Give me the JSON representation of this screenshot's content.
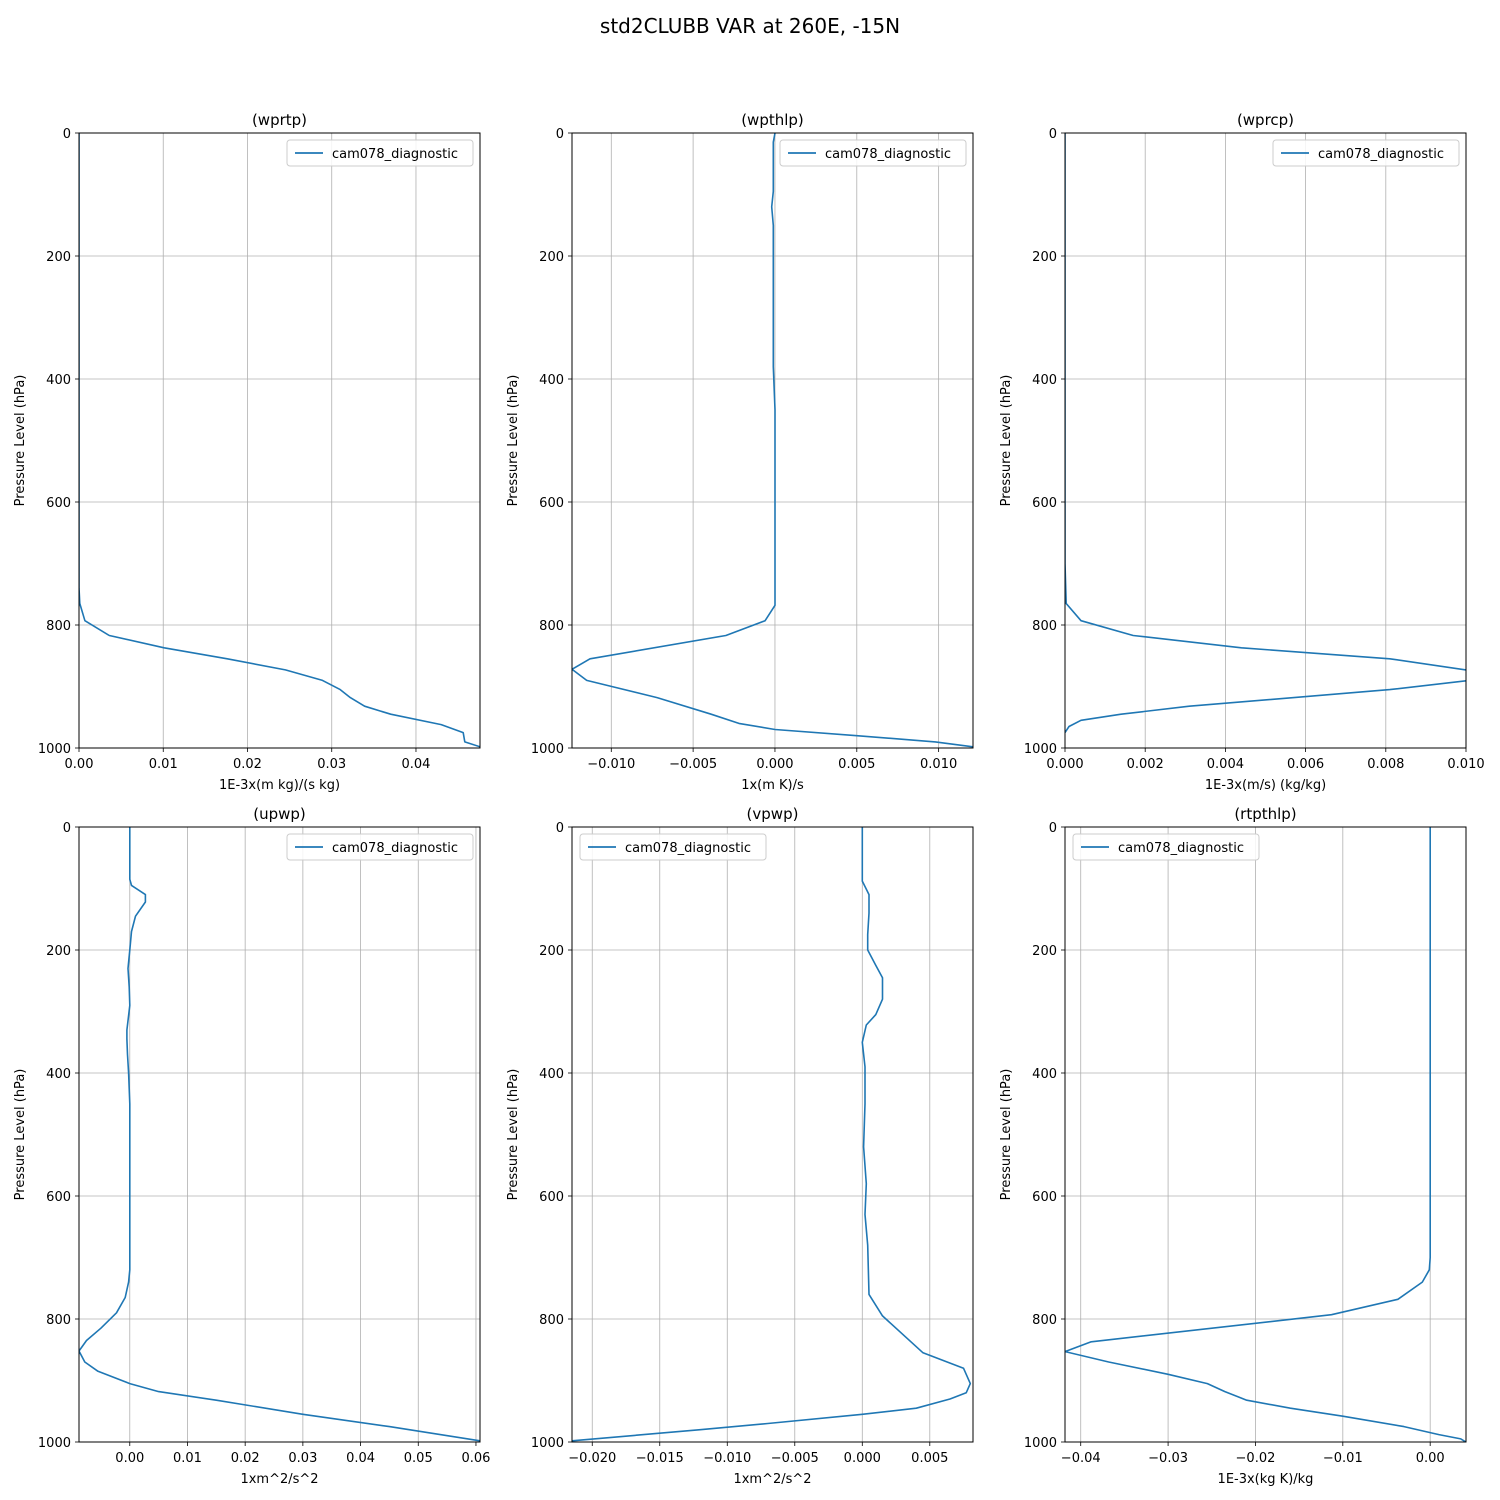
{
  "figure": {
    "title": "std2CLUBB VAR at 260E, -15N"
  },
  "colors": {
    "series": "#1f77b4",
    "grid": "#b0b0b0",
    "axis": "#000000",
    "legend_border": "#cccccc"
  },
  "chart_data": [
    {
      "type": "line",
      "title": "(wprtp)",
      "xlabel": "1E-3x(m kg)/(s kg)",
      "ylabel": "Pressure Level (hPa)",
      "xlim": [
        0,
        0.0476
      ],
      "ylim": [
        1000,
        0
      ],
      "xticks": [
        0,
        0.01,
        0.02,
        0.03,
        0.04
      ],
      "xtick_labels": [
        "0.00",
        "0.01",
        "0.02",
        "0.03",
        "0.04"
      ],
      "yticks": [
        0,
        200,
        400,
        600,
        800,
        1000
      ],
      "ytick_labels": [
        "0",
        "200",
        "400",
        "600",
        "800",
        "1000"
      ],
      "grid": true,
      "legend_position": "upper right",
      "series": [
        {
          "name": "cam078_diagnostic",
          "x": [
            0,
            0,
            0.0001,
            0.0007,
            0.0036,
            0.0101,
            0.0176,
            0.0245,
            0.0289,
            0.031,
            0.0322,
            0.0339,
            0.037,
            0.043,
            0.0456,
            0.0458,
            0.0476
          ],
          "y": [
            0,
            740,
            765,
            793,
            817,
            837,
            855,
            873,
            890,
            905,
            918,
            932,
            945,
            962,
            975,
            990,
            998
          ]
        }
      ]
    },
    {
      "type": "line",
      "title": "(wpthlp)",
      "xlabel": "1x(m K)/s",
      "ylabel": "Pressure Level (hPa)",
      "xlim": [
        -0.0124,
        0.0121
      ],
      "ylim": [
        1000,
        0
      ],
      "xticks": [
        -0.01,
        -0.005,
        0,
        0.005,
        0.01
      ],
      "xtick_labels": [
        "−0.010",
        "−0.005",
        "0.000",
        "0.005",
        "0.010"
      ],
      "yticks": [
        0,
        200,
        400,
        600,
        800,
        1000
      ],
      "ytick_labels": [
        "0",
        "200",
        "400",
        "600",
        "800",
        "1000"
      ],
      "grid": true,
      "legend_position": "upper right",
      "series": [
        {
          "name": "cam078_diagnostic",
          "x": [
            0,
            -0.0001,
            -0.0001,
            -0.0001,
            -0.0002,
            -0.0001,
            -0.0001,
            -0.0001,
            -0.0001,
            -0.0001,
            0,
            0,
            0,
            0,
            0,
            0,
            -0.0006,
            -0.003,
            -0.0113,
            -0.0124,
            -0.0115,
            -0.0072,
            -0.0039,
            -0.0022,
            0,
            0.005,
            0.0098,
            0.0121
          ],
          "y": [
            0,
            15,
            60,
            95,
            120,
            150,
            200,
            260,
            320,
            380,
            450,
            520,
            600,
            680,
            740,
            768,
            793,
            817,
            855,
            872,
            890,
            918,
            945,
            960,
            970,
            980,
            990,
            998
          ]
        }
      ]
    },
    {
      "type": "line",
      "title": "(wprcp)",
      "xlabel": "1E-3x(m/s) (kg/kg)",
      "ylabel": "Pressure Level (hPa)",
      "xlim": [
        0,
        0.01
      ],
      "ylim": [
        1000,
        0
      ],
      "xticks": [
        0,
        0.002,
        0.004,
        0.006,
        0.008,
        0.01
      ],
      "xtick_labels": [
        "0.000",
        "0.002",
        "0.004",
        "0.006",
        "0.008",
        "0.010"
      ],
      "yticks": [
        0,
        200,
        400,
        600,
        800,
        1000
      ],
      "ytick_labels": [
        "0",
        "200",
        "400",
        "600",
        "800",
        "1000"
      ],
      "grid": true,
      "legend_position": "upper right",
      "series": [
        {
          "name": "cam078_diagnostic",
          "x": [
            0,
            0,
            3e-05,
            0.0004,
            0.0017,
            0.0044,
            0.0081,
            0.01,
            0.0101,
            0.0081,
            0.0031,
            0.0014,
            0.0004,
            0.0001,
            0
          ],
          "y": [
            0,
            700,
            765,
            793,
            817,
            837,
            855,
            873,
            890,
            905,
            932,
            945,
            955,
            965,
            975
          ]
        }
      ]
    },
    {
      "type": "line",
      "title": "(upwp)",
      "xlabel": "1xm^2/s^2",
      "ylabel": "Pressure Level (hPa)",
      "xlim": [
        -0.0088,
        0.0607
      ],
      "ylim": [
        1000,
        0
      ],
      "xticks": [
        0,
        0.01,
        0.02,
        0.03,
        0.04,
        0.05,
        0.06
      ],
      "xtick_labels": [
        "0.00",
        "0.01",
        "0.02",
        "0.03",
        "0.04",
        "0.05",
        "0.06"
      ],
      "yticks": [
        0,
        200,
        400,
        600,
        800,
        1000
      ],
      "ytick_labels": [
        "0",
        "200",
        "400",
        "600",
        "800",
        "1000"
      ],
      "grid": true,
      "legend_position": "upper right",
      "series": [
        {
          "name": "cam078_diagnostic",
          "x": [
            0,
            0,
            0.0003,
            0.0027,
            0.0027,
            0.001,
            0.0003,
            0,
            -0.0003,
            -0.0001,
            0,
            -0.0005,
            -0.0005,
            -0.0004,
            -0.0002,
            0,
            0,
            0,
            0,
            -0.0002,
            -0.0008,
            -0.0023,
            -0.005,
            -0.0075,
            -0.0088,
            -0.0078,
            -0.0055,
            0,
            0.005,
            0.015,
            0.03,
            0.045,
            0.0607
          ],
          "y": [
            0,
            85,
            95,
            110,
            122,
            145,
            170,
            200,
            230,
            260,
            290,
            330,
            345,
            370,
            400,
            450,
            550,
            650,
            720,
            740,
            765,
            790,
            815,
            835,
            852,
            870,
            885,
            905,
            918,
            932,
            955,
            975,
            998
          ]
        }
      ]
    },
    {
      "type": "line",
      "title": "(vpwp)",
      "xlabel": "1xm^2/s^2",
      "ylabel": "Pressure Level (hPa)",
      "xlim": [
        -0.0215,
        0.0082
      ],
      "ylim": [
        1000,
        0
      ],
      "xticks": [
        -0.02,
        -0.015,
        -0.01,
        -0.005,
        0,
        0.005
      ],
      "xtick_labels": [
        "−0.020",
        "−0.015",
        "−0.010",
        "−0.005",
        "0.000",
        "0.005"
      ],
      "yticks": [
        0,
        200,
        400,
        600,
        800,
        1000
      ],
      "ytick_labels": [
        "0",
        "200",
        "400",
        "600",
        "800",
        "1000"
      ],
      "grid": true,
      "legend_position": "upper left",
      "series": [
        {
          "name": "cam078_diagnostic",
          "x": [
            0,
            0,
            0.0005,
            0.0005,
            0.0004,
            0.0004,
            0.001,
            0.0015,
            0.0015,
            0.001,
            0.0003,
            0,
            0.0002,
            0.0002,
            0.0001,
            0.0003,
            0.0002,
            0.0004,
            0.0005,
            0.0015,
            0.0045,
            0.0075,
            0.008,
            0.0077,
            0.0065,
            0.004,
            0,
            -0.007,
            -0.012,
            -0.0215
          ],
          "y": [
            0,
            88,
            110,
            140,
            175,
            200,
            225,
            245,
            280,
            305,
            322,
            350,
            390,
            450,
            520,
            580,
            630,
            680,
            760,
            795,
            855,
            880,
            905,
            920,
            930,
            945,
            955,
            970,
            980,
            998
          ]
        }
      ]
    },
    {
      "type": "line",
      "title": "(rtpthlp)",
      "xlabel": "1E-3x(kg K)/kg",
      "ylabel": "Pressure Level (hPa)",
      "xlim": [
        -0.0418,
        0.0041
      ],
      "ylim": [
        1000,
        0
      ],
      "xticks": [
        -0.04,
        -0.03,
        -0.02,
        -0.01,
        0
      ],
      "xtick_labels": [
        "−0.04",
        "−0.03",
        "−0.02",
        "−0.01",
        "0.00"
      ],
      "yticks": [
        0,
        200,
        400,
        600,
        800,
        1000
      ],
      "ytick_labels": [
        "0",
        "200",
        "400",
        "600",
        "800",
        "1000"
      ],
      "grid": true,
      "legend_position": "upper left",
      "series": [
        {
          "name": "cam078_diagnostic",
          "x": [
            0,
            0,
            0,
            0,
            -0.0001,
            -0.0009,
            -0.0037,
            -0.0113,
            -0.0388,
            -0.0418,
            -0.0368,
            -0.03,
            -0.0255,
            -0.0235,
            -0.021,
            -0.016,
            -0.01,
            -0.003,
            0.001,
            0.0035,
            0.0041
          ],
          "y": [
            0,
            200,
            500,
            700,
            720,
            740,
            768,
            793,
            837,
            853,
            870,
            890,
            905,
            918,
            932,
            945,
            958,
            975,
            988,
            995,
            1000
          ]
        }
      ]
    }
  ]
}
